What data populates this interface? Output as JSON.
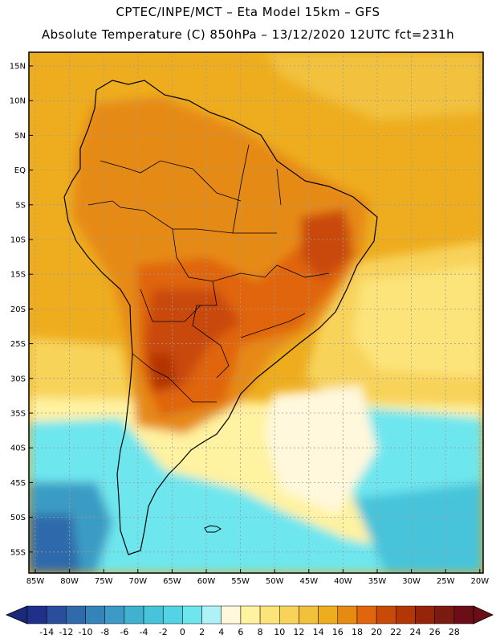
{
  "header": {
    "title_line1": "CPTEC/INPE/MCT  –   Eta Model 15km  –  GFS",
    "title_line2": "Absolute Temperature (C) 850hPa  –  13/12/2020 12UTC fct=231h"
  },
  "map": {
    "lat_labels": [
      "15N",
      "10N",
      "5N",
      "EQ",
      "5S",
      "10S",
      "15S",
      "20S",
      "25S",
      "30S",
      "35S",
      "40S",
      "45S",
      "50S",
      "55S"
    ],
    "lon_labels": [
      "85W",
      "80W",
      "75W",
      "70W",
      "65W",
      "60W",
      "55W",
      "50W",
      "45W",
      "40W",
      "35W",
      "30W",
      "25W",
      "20W"
    ]
  },
  "colorbar": {
    "labels": [
      "-14",
      "-12",
      "-10",
      "-8",
      "-6",
      "-4",
      "-2",
      "0",
      "2",
      "4",
      "6",
      "8",
      "10",
      "12",
      "14",
      "16",
      "18",
      "20",
      "22",
      "24",
      "26",
      "28"
    ],
    "colors": [
      "#20308a",
      "#2a4d9c",
      "#2f6aab",
      "#3583b8",
      "#3b9bc4",
      "#40b2d0",
      "#47c4da",
      "#52d4e4",
      "#6ee6ee",
      "#aef2f8",
      "#fff8dc",
      "#fff2a0",
      "#fde47a",
      "#f8d35a",
      "#f2c13c",
      "#eead1e",
      "#e68a12",
      "#e0650c",
      "#c94a08",
      "#b23606",
      "#952408",
      "#7a1a10",
      "#6b0e18"
    ],
    "under_color": "#1a2a78",
    "over_color": "#6b0e18"
  }
}
